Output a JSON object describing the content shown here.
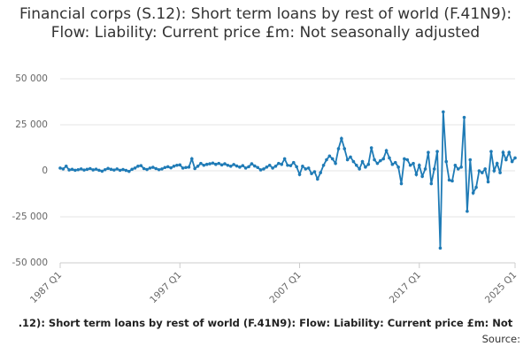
{
  "chart_data": {
    "type": "line",
    "title": "Financial corps (S.12): Short term loans by rest of world (F.41N9): Flow: Liability: Current price £m: Not seasonally adjusted",
    "footer": ".12): Short term loans by rest of world (F.41N9): Flow: Liability: Current price £m: Not",
    "source": "Source:",
    "categories": [
      "1987 Q1",
      null,
      null,
      null,
      null,
      null,
      null,
      null,
      null,
      null,
      null,
      null,
      null,
      null,
      null,
      null,
      null,
      null,
      null,
      null,
      null,
      null,
      null,
      null,
      null,
      null,
      null,
      null,
      null,
      null,
      null,
      null,
      null,
      null,
      null,
      null,
      null,
      null,
      null,
      null,
      "1997 Q1",
      null,
      null,
      null,
      null,
      null,
      null,
      null,
      null,
      null,
      null,
      null,
      null,
      null,
      null,
      null,
      null,
      null,
      null,
      null,
      null,
      null,
      null,
      null,
      null,
      null,
      null,
      null,
      null,
      null,
      null,
      null,
      null,
      null,
      null,
      null,
      null,
      null,
      null,
      null,
      "2007 Q1",
      null,
      null,
      null,
      null,
      null,
      null,
      null,
      null,
      null,
      null,
      null,
      null,
      null,
      null,
      null,
      null,
      null,
      null,
      null,
      null,
      null,
      null,
      null,
      null,
      null,
      null,
      null,
      null,
      null,
      null,
      null,
      null,
      null,
      null,
      null,
      null,
      null,
      null,
      null,
      "2017 Q1",
      null,
      null,
      null,
      null,
      null,
      null,
      null,
      null,
      null,
      null,
      null,
      null,
      null,
      null,
      null,
      null,
      null,
      null,
      null,
      null,
      null,
      null,
      null,
      null,
      null,
      null,
      null,
      null,
      null,
      null,
      null,
      "2025 Q1"
    ],
    "series": [
      {
        "color": "#1f7bb6",
        "values": [
          1500,
          1000,
          2500,
          500,
          800,
          300,
          600,
          1000,
          400,
          800,
          1200,
          500,
          900,
          300,
          -200,
          600,
          1300,
          800,
          400,
          1000,
          300,
          700,
          200,
          -300,
          800,
          1500,
          2500,
          2800,
          1200,
          700,
          1500,
          1900,
          1200,
          600,
          1000,
          1800,
          2200,
          1600,
          2500,
          3000,
          3200,
          1500,
          1800,
          2000,
          6500,
          1200,
          2500,
          4000,
          3000,
          3500,
          3800,
          4200,
          3500,
          4000,
          3200,
          3800,
          3000,
          2500,
          3400,
          2600,
          2000,
          2800,
          1500,
          2200,
          3800,
          2600,
          1800,
          500,
          1000,
          2000,
          3000,
          1500,
          2500,
          4000,
          3500,
          6500,
          3000,
          2800,
          4500,
          2200,
          -2000,
          2500,
          1000,
          1500,
          -1500,
          -500,
          -4500,
          -1000,
          3000,
          6000,
          8000,
          6500,
          4000,
          12000,
          17500,
          12000,
          6000,
          7500,
          5000,
          3000,
          1000,
          5000,
          2000,
          3500,
          12500,
          6000,
          4000,
          5500,
          6500,
          11000,
          7000,
          3500,
          4500,
          2000,
          -7000,
          6500,
          6000,
          3000,
          4000,
          -2000,
          3000,
          -3000,
          1000,
          10000,
          -7000,
          1000,
          10500,
          -42000,
          32000,
          5000,
          -5000,
          -5500,
          3000,
          1000,
          2000,
          29000,
          -22000,
          6000,
          -12000,
          -9000,
          0,
          -1000,
          1000,
          -6000,
          10500,
          0,
          4000,
          -1000,
          10000,
          6000,
          10000,
          5000,
          7000
        ]
      }
    ],
    "ylim": [
      -50000,
      50000
    ],
    "yticks": [
      {
        "value": 50000,
        "label": "50 000"
      },
      {
        "value": 25000,
        "label": "25 000"
      },
      0,
      {
        "value": -25000,
        "label": "-25 000"
      },
      {
        "value": -50000,
        "label": "-50 000"
      }
    ],
    "grid": true
  }
}
